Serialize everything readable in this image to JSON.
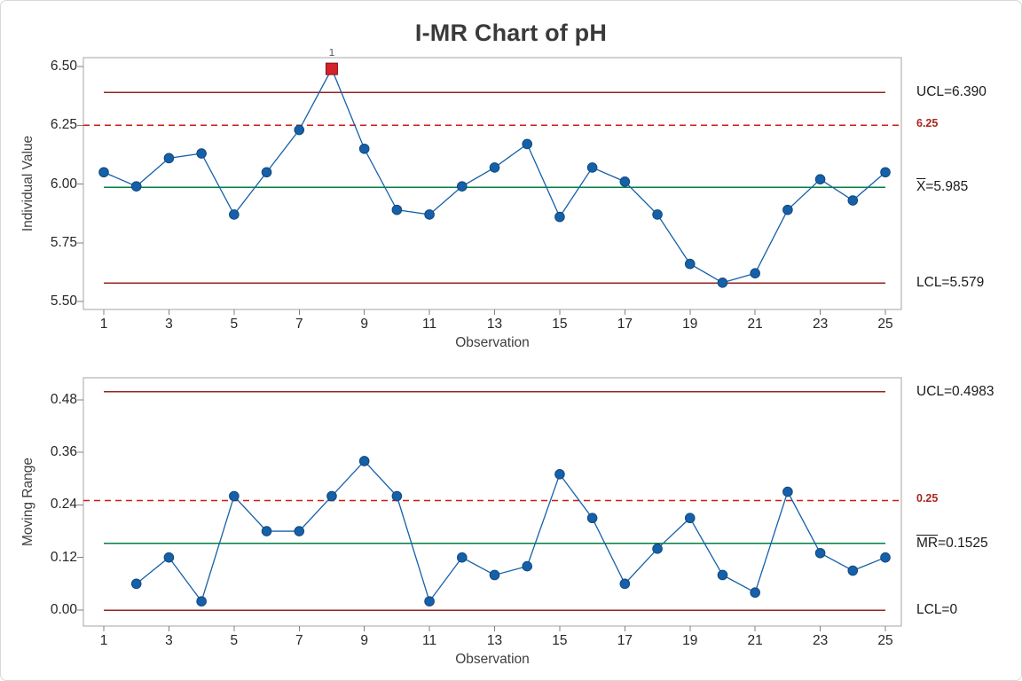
{
  "title": "I-MR Chart of pH",
  "colors": {
    "series_blue": "#1560a8",
    "marker_edge_blue": "#11497f",
    "out_of_control_red": "#d2232a",
    "control_limit_red": "#942622",
    "center_green": "#008040",
    "reference_red": "#cc1d14",
    "annotation_red": "#a8271f",
    "plot_border_gray": "#a6a6a6",
    "tick_gray": "#808080",
    "ooc_label_gray": "#595959"
  },
  "chart_data": [
    {
      "type": "line",
      "name": "individuals",
      "ylabel": "Individual Value",
      "xlabel": "Observation",
      "x": [
        1,
        2,
        3,
        4,
        5,
        6,
        7,
        8,
        9,
        10,
        11,
        12,
        13,
        14,
        15,
        16,
        17,
        18,
        19,
        20,
        21,
        22,
        23,
        24,
        25
      ],
      "values": [
        6.05,
        5.99,
        6.11,
        6.13,
        5.87,
        6.05,
        6.23,
        6.49,
        6.15,
        5.89,
        5.87,
        5.99,
        6.07,
        6.17,
        5.86,
        6.07,
        6.01,
        5.87,
        5.66,
        5.58,
        5.62,
        5.89,
        6.02,
        5.93,
        6.05
      ],
      "ucl": 6.39,
      "center": 5.985,
      "lcl": 5.579,
      "reference": 6.25,
      "ylim": [
        5.47,
        6.54
      ],
      "grid": false,
      "yticks": [
        6.5,
        6.25,
        6.0,
        5.75,
        5.5
      ],
      "ytick_labels": [
        "6.50",
        "6.25",
        "6.00",
        "5.75",
        "5.50"
      ],
      "xticks": [
        1,
        3,
        5,
        7,
        9,
        11,
        13,
        15,
        17,
        19,
        21,
        23,
        25
      ],
      "xtick_labels": [
        "1",
        "3",
        "5",
        "7",
        "9",
        "11",
        "13",
        "15",
        "17",
        "19",
        "21",
        "23",
        "25"
      ],
      "out_of_control": [
        {
          "obs": 8,
          "value": 6.49,
          "label": "1"
        }
      ],
      "labels": {
        "ucl": "UCL=6.390",
        "reference": "6.25",
        "center_barred": "X",
        "center_rest": "=5.985",
        "lcl": "LCL=5.579"
      }
    },
    {
      "type": "line",
      "name": "moving-range",
      "ylabel": "Moving Range",
      "xlabel": "Observation",
      "x": [
        2,
        3,
        4,
        5,
        6,
        7,
        8,
        9,
        10,
        11,
        12,
        13,
        14,
        15,
        16,
        17,
        18,
        19,
        20,
        21,
        22,
        23,
        24,
        25
      ],
      "values": [
        0.06,
        0.12,
        0.02,
        0.26,
        0.18,
        0.18,
        0.26,
        0.34,
        0.26,
        0.02,
        0.12,
        0.08,
        0.1,
        0.31,
        0.21,
        0.06,
        0.14,
        0.21,
        0.08,
        0.04,
        0.27,
        0.13,
        0.09,
        0.12
      ],
      "ucl": 0.4983,
      "center": 0.1525,
      "lcl": 0,
      "reference": 0.25,
      "ylim": [
        -0.04,
        0.53
      ],
      "grid": false,
      "yticks": [
        0.48,
        0.36,
        0.24,
        0.12,
        0.0
      ],
      "ytick_labels": [
        "0.48",
        "0.36",
        "0.24",
        "0.12",
        "0.00"
      ],
      "xticks": [
        1,
        3,
        5,
        7,
        9,
        11,
        13,
        15,
        17,
        19,
        21,
        23,
        25
      ],
      "xtick_labels": [
        "1",
        "3",
        "5",
        "7",
        "9",
        "11",
        "13",
        "15",
        "17",
        "19",
        "21",
        "23",
        "25"
      ],
      "out_of_control": [],
      "labels": {
        "ucl": "UCL=0.4983",
        "reference": "0.25",
        "center_barred": "MR",
        "center_rest": "=0.1525",
        "lcl": "LCL=0"
      }
    }
  ]
}
